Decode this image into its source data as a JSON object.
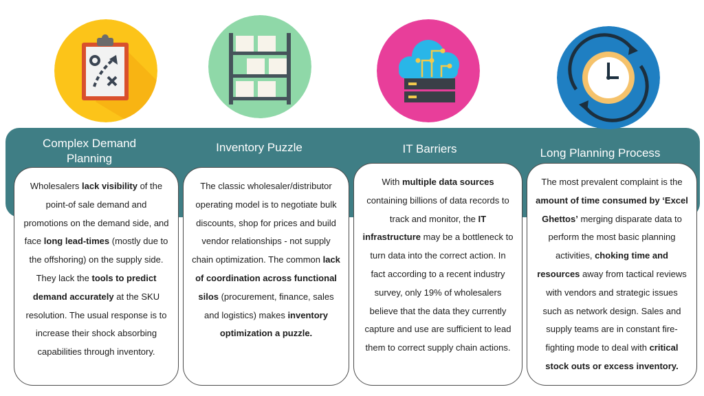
{
  "colors": {
    "band": "#3f7e85",
    "icon1_bg": "#fcc419",
    "icon2_bg": "#8fd8a8",
    "icon3_bg": "#e83e9a",
    "icon4_bg": "#1f7fc2"
  },
  "columns": [
    {
      "title": "Complex Demand Planning",
      "icon": "clipboard-strategy-icon",
      "body": [
        {
          "t": "Wholesalers "
        },
        {
          "t": "lack visibility",
          "b": true
        },
        {
          "t": " of the point-of sale demand and promotions on the demand side, and face "
        },
        {
          "t": "long lead-times",
          "b": true
        },
        {
          "t": " (mostly due to the offshoring) on the supply side. They lack the "
        },
        {
          "t": "tools to predict demand accurately",
          "b": true
        },
        {
          "t": " at the SKU resolution. The usual response is to increase their shock absorbing capabilities through inventory."
        }
      ]
    },
    {
      "title": "Inventory Puzzle",
      "icon": "warehouse-shelf-icon",
      "body": [
        {
          "t": "The classic wholesaler/distributor operating model is to negotiate bulk discounts, shop for prices and build vendor relationships - not supply chain optimization. The common "
        },
        {
          "t": "lack of coordination across functional silos",
          "b": true
        },
        {
          "t": " (procurement, finance, sales and logistics) makes "
        },
        {
          "t": "inventory optimization a puzzle.",
          "b": true
        }
      ]
    },
    {
      "title": "IT Barriers",
      "icon": "cloud-server-icon",
      "body": [
        {
          "t": "With "
        },
        {
          "t": "multiple data sources",
          "b": true
        },
        {
          "t": " containing billions of data records to track and monitor, the "
        },
        {
          "t": "IT infrastructure",
          "b": true
        },
        {
          "t": " may be a bottleneck to turn data into the correct action.  In fact according to a recent industry survey, only 19% of wholesalers believe that the data they currently capture and use are sufficient to lead them to correct supply chain actions."
        }
      ]
    },
    {
      "title": "Long Planning Process",
      "icon": "clock-cycle-icon",
      "body": [
        {
          "t": "The most prevalent complaint is the "
        },
        {
          "t": "amount of time consumed by ‘Excel Ghettos’",
          "b": true
        },
        {
          "t": " merging disparate data to perform the most basic planning activities, "
        },
        {
          "t": "choking time and resources",
          "b": true
        },
        {
          "t": " away from tactical reviews with vendors and strategic issues such as network design. Sales and supply teams are in constant fire-fighting mode to deal with "
        },
        {
          "t": "critical stock outs or excess inventory.",
          "b": true
        }
      ]
    }
  ]
}
